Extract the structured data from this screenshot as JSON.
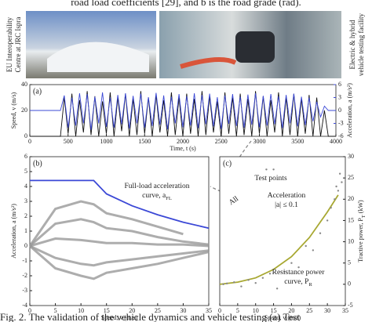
{
  "header": {
    "text": "road load coefficients [29], and b is the road grade (rad)."
  },
  "photos": {
    "left_label": [
      "EU Interoperability",
      "Centre at JRC Ispra"
    ],
    "right_label": [
      "Electric & hybrid",
      "vehicle testing facility"
    ]
  },
  "chart_data": [
    {
      "type": "line",
      "label": "(a)",
      "xlabel": "Time, t (s)",
      "ylabel": "Speed, v (m/s)",
      "y2label": "Acceleration, a (m/s²)",
      "x": [
        0,
        100,
        200,
        300,
        400,
        450,
        500,
        550,
        600,
        650,
        700,
        750,
        800,
        850,
        900,
        950,
        1000,
        1050,
        1100,
        1150,
        1200,
        1250,
        1300,
        1350,
        1400,
        1450,
        1500,
        1550,
        1600,
        1650,
        1700,
        1750,
        1800,
        1850,
        1900,
        1950,
        2000,
        2050,
        2100,
        2150,
        2200,
        2250,
        2300,
        2350,
        2400,
        2450,
        2500,
        2550,
        2600,
        2650,
        2700,
        2750,
        2800,
        2850,
        2900,
        2950,
        3000,
        3050,
        3100,
        3150,
        3200,
        3250,
        3300,
        3350,
        3400,
        3450,
        3500,
        3550,
        3600,
        3650,
        3700,
        3750,
        3800,
        3850,
        3900,
        4000
      ],
      "xlim": [
        0,
        4000
      ],
      "xticks": [
        0,
        500,
        1000,
        1500,
        2000,
        2500,
        3000,
        3500,
        4000
      ],
      "ylim": [
        0,
        40
      ],
      "yticks": [
        0,
        20,
        40
      ],
      "y2lim": [
        -6,
        6
      ],
      "y2ticks": [
        -6,
        -3,
        0,
        3,
        6
      ],
      "series": [
        {
          "color": "#111111",
          "values": [
            0,
            0,
            0,
            0,
            0,
            30,
            2,
            33,
            0,
            28,
            3,
            35,
            1,
            31,
            0,
            27,
            2,
            34,
            0,
            30,
            4,
            33,
            0,
            29,
            1,
            35,
            2,
            30,
            0,
            32,
            3,
            28,
            0,
            34,
            1,
            30,
            0,
            33,
            2,
            29,
            0,
            35,
            1,
            31,
            3,
            27,
            0,
            34,
            2,
            30,
            0,
            33,
            1,
            29,
            0,
            35,
            2,
            31,
            0,
            28,
            3,
            34,
            0,
            30,
            1,
            33,
            0,
            29,
            2,
            32,
            0,
            30,
            0,
            20,
            0,
            0
          ]
        },
        {
          "color": "#3b48d6",
          "axis": "y2",
          "values": [
            0,
            0,
            0,
            0,
            0,
            3.5,
            -4,
            3,
            -3.5,
            4,
            -3,
            3.8,
            -4.5,
            3.2,
            -3,
            4.2,
            -3.8,
            3,
            -4,
            3.6,
            -3.2,
            4,
            -4.2,
            3.4,
            -3,
            3.9,
            -4,
            3.1,
            -3.6,
            4.1,
            -3.3,
            3.5,
            -4.4,
            3.2,
            -3,
            3.8,
            -3.9,
            3.3,
            -3.5,
            4,
            -4.1,
            3.6,
            -3.2,
            3.9,
            -3.7,
            3.1,
            -4.3,
            3.5,
            -3.1,
            3.8,
            -3.6,
            3.2,
            -4,
            3.7,
            -3.3,
            4,
            -3.9,
            3.4,
            -3.5,
            3.8,
            -3.2,
            3.3,
            -4.1,
            3.6,
            -3,
            3.9,
            -3.7,
            3.2,
            -3.4,
            3,
            -2.5,
            2,
            -1.5,
            1,
            0,
            0
          ]
        }
      ]
    },
    {
      "type": "line",
      "label": "(b)",
      "xlabel": "Speed, v (m/s)",
      "ylabel": "Acceleration, a (m/s²)",
      "annotation": [
        "Full-load acceleration",
        "curve, a",
        "FL"
      ],
      "x": [
        0,
        5,
        10,
        12.5,
        15,
        20,
        25,
        30,
        35
      ],
      "xlim": [
        0,
        35
      ],
      "xticks": [
        0,
        5,
        10,
        15,
        20,
        25,
        30,
        35
      ],
      "ylim": [
        -4,
        6
      ],
      "yticks": [
        -4,
        -3,
        -2,
        -1,
        0,
        1,
        2,
        3,
        4,
        5,
        6
      ],
      "series": [
        {
          "color": "#999999",
          "values": [
            0,
            2.5,
            3.0,
            2.8,
            2.2,
            1.8,
            1.3,
            0.8,
            null
          ]
        },
        {
          "color": "#999999",
          "values": [
            0,
            1.5,
            1.8,
            1.6,
            1.2,
            1.0,
            0.6,
            0.3,
            0.1
          ]
        },
        {
          "color": "#999999",
          "values": [
            0,
            0.5,
            0.4,
            0.3,
            0.2,
            0.2,
            0.1,
            0.1,
            0
          ]
        },
        {
          "color": "#999999",
          "values": [
            0,
            -0.8,
            -1.2,
            -1.3,
            -1.1,
            -0.9,
            -0.7,
            -0.5,
            -0.3
          ]
        },
        {
          "color": "#999999",
          "values": [
            0,
            -1.5,
            -2,
            -2.2,
            -1.8,
            -1.5,
            -1.2,
            -0.8,
            -0.4
          ]
        },
        {
          "color": "#3b48d6",
          "values": [
            4.4,
            4.4,
            4.4,
            4.4,
            3.5,
            2.7,
            2.1,
            1.6,
            1.2
          ]
        }
      ]
    },
    {
      "type": "line",
      "label": "(c)",
      "xlabel": "Speed, v (m/s)",
      "ylabel": [
        "Tractive power, P",
        "T",
        " (kW)"
      ],
      "annotations": [
        "Test points",
        "All",
        "Acceleration",
        "|a| ≤ 0.1",
        "Resistance power",
        "curve, P",
        "R"
      ],
      "x": [
        0,
        5,
        10,
        15,
        20,
        25,
        30,
        33
      ],
      "xlim": [
        0,
        35
      ],
      "xticks": [
        0,
        5,
        10,
        15,
        20,
        25,
        30,
        35
      ],
      "ylim": [
        -5,
        30
      ],
      "yticks": [
        -5,
        0,
        5,
        10,
        15,
        20,
        25,
        30
      ],
      "series": [
        {
          "color": "#a8a832",
          "values": [
            0,
            0.5,
            1.5,
            3.5,
            6.5,
            11,
            17,
            21
          ]
        }
      ],
      "scatter": {
        "color": "#888888",
        "x": [
          1,
          2,
          4,
          6,
          8,
          10,
          12,
          14,
          16,
          18,
          20,
          22,
          24,
          26,
          28,
          30,
          31,
          32,
          33,
          34,
          33.5,
          32.5,
          13,
          15
        ],
        "y": [
          0,
          0.2,
          0.5,
          -0.5,
          1,
          0.3,
          1.5,
          2.5,
          -1,
          3,
          5,
          4,
          9,
          8,
          12,
          15,
          18,
          20,
          22,
          24,
          26,
          23,
          27,
          27
        ]
      }
    }
  ],
  "caption": "Fig. 2.  The validation of the vehicle dynamics and vehicle testing (a) Test"
}
